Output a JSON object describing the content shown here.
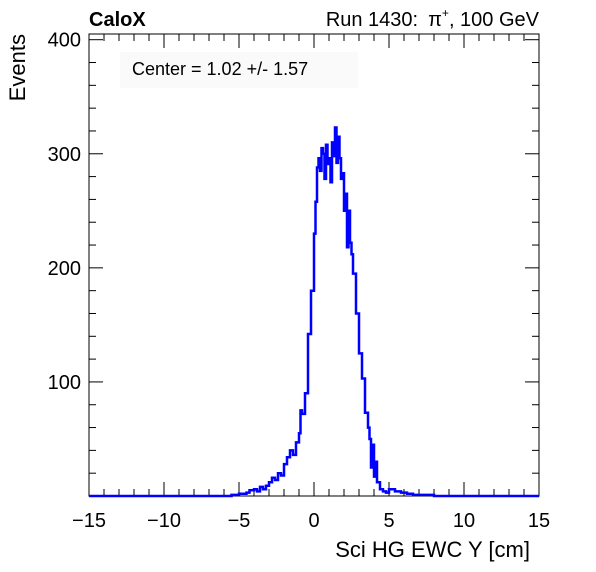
{
  "header": {
    "experiment": "CaloX",
    "run_prefix": "Run 1430:",
    "particle_base": "π",
    "particle_charge": "+",
    "energy": ", 100 GeV"
  },
  "annotation": "Center = 1.02 +/- 1.57",
  "chart_data": {
    "type": "histogram",
    "xlabel": "Sci HG EWC Y [cm]",
    "ylabel": "Events",
    "xlim": [
      -15,
      15
    ],
    "ylim": [
      0,
      405
    ],
    "x_ticks": [
      -15,
      -10,
      -5,
      0,
      5,
      10,
      15
    ],
    "x_tick_labels": [
      "−15",
      "−10",
      "−5",
      "0",
      "5",
      "10",
      "15"
    ],
    "y_ticks": [
      100,
      200,
      300,
      400
    ],
    "y_tick_labels": [
      "100",
      "200",
      "300",
      "400"
    ],
    "line_color": "#0000ff",
    "bins": [
      [
        -15,
        0
      ],
      [
        -6.0,
        0
      ],
      [
        -5.5,
        1
      ],
      [
        -5.0,
        2
      ],
      [
        -4.5,
        3
      ],
      [
        -4.3,
        5
      ],
      [
        -4.0,
        6
      ],
      [
        -3.8,
        4
      ],
      [
        -3.6,
        8
      ],
      [
        -3.4,
        6
      ],
      [
        -3.2,
        9
      ],
      [
        -3.0,
        12
      ],
      [
        -2.8,
        16
      ],
      [
        -2.6,
        14
      ],
      [
        -2.4,
        20
      ],
      [
        -2.2,
        18
      ],
      [
        -2.0,
        28
      ],
      [
        -1.8,
        34
      ],
      [
        -1.6,
        40
      ],
      [
        -1.4,
        36
      ],
      [
        -1.2,
        47
      ],
      [
        -1.0,
        55
      ],
      [
        -0.9,
        75
      ],
      [
        -0.8,
        72
      ],
      [
        -0.6,
        90
      ],
      [
        -0.4,
        142
      ],
      [
        -0.2,
        180
      ],
      [
        0.0,
        230
      ],
      [
        0.1,
        258
      ],
      [
        0.2,
        288
      ],
      [
        0.3,
        296
      ],
      [
        0.4,
        285
      ],
      [
        0.5,
        305
      ],
      [
        0.6,
        300
      ],
      [
        0.7,
        278
      ],
      [
        0.8,
        308
      ],
      [
        0.9,
        291
      ],
      [
        1.0,
        296
      ],
      [
        1.1,
        275
      ],
      [
        1.2,
        310
      ],
      [
        1.3,
        298
      ],
      [
        1.4,
        323
      ],
      [
        1.5,
        292
      ],
      [
        1.6,
        315
      ],
      [
        1.7,
        296
      ],
      [
        1.8,
        278
      ],
      [
        1.9,
        283
      ],
      [
        2.0,
        250
      ],
      [
        2.1,
        265
      ],
      [
        2.2,
        218
      ],
      [
        2.3,
        250
      ],
      [
        2.4,
        222
      ],
      [
        2.5,
        212
      ],
      [
        2.6,
        195
      ],
      [
        2.8,
        160
      ],
      [
        3.0,
        125
      ],
      [
        3.2,
        103
      ],
      [
        3.4,
        73
      ],
      [
        3.6,
        60
      ],
      [
        3.7,
        50
      ],
      [
        3.8,
        25
      ],
      [
        3.9,
        45
      ],
      [
        4.0,
        17
      ],
      [
        4.1,
        30
      ],
      [
        4.2,
        12
      ],
      [
        4.4,
        6
      ],
      [
        4.6,
        4
      ],
      [
        4.8,
        3
      ],
      [
        5.0,
        6
      ],
      [
        5.4,
        4
      ],
      [
        5.8,
        3
      ],
      [
        6.2,
        2
      ],
      [
        6.6,
        1
      ],
      [
        7.2,
        1
      ],
      [
        8.0,
        0
      ],
      [
        15,
        0
      ]
    ]
  }
}
